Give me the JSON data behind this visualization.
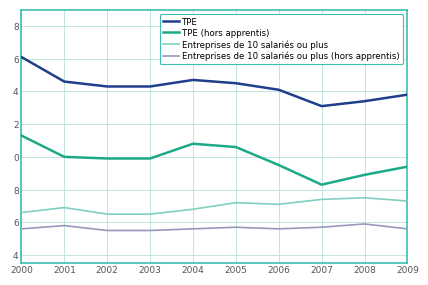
{
  "years": [
    2000,
    2001,
    2002,
    2003,
    2004,
    2005,
    2006,
    2007,
    2008,
    2009
  ],
  "tpe": [
    106.1,
    104.6,
    104.3,
    104.3,
    104.7,
    104.5,
    104.1,
    103.1,
    103.4,
    103.8
  ],
  "tpe_hors": [
    101.3,
    100.0,
    99.9,
    99.9,
    100.8,
    100.6,
    99.5,
    98.3,
    98.9,
    99.4
  ],
  "ent10plus": [
    96.6,
    96.9,
    96.5,
    96.5,
    96.8,
    97.2,
    97.1,
    97.4,
    97.5,
    97.3
  ],
  "ent10plus_hors": [
    95.6,
    95.8,
    95.5,
    95.5,
    95.6,
    95.7,
    95.6,
    95.7,
    95.9,
    95.6
  ],
  "color_tpe": "#1f3f8c",
  "color_tpe_hors": "#1aaa88",
  "color_ent10plus": "#80cfc0",
  "color_ent10plus_hors": "#9999bb",
  "label_tpe": "TPE",
  "label_tpe_hors": "TPE (hors apprentis)",
  "label_ent10plus": "Entreprises de 10 salariés ou plus",
  "label_ent10plus_hors": "Entreprises de 10 salariés ou plus (hors apprentis)",
  "ylim": [
    93.5,
    109.0
  ],
  "yticks": [
    94,
    96,
    98,
    100,
    102,
    104,
    106,
    108
  ],
  "ytick_labels": [
    "4",
    "6",
    "8",
    "0",
    "2",
    "4",
    "6",
    "8"
  ],
  "bg_color": "#ffffff",
  "grid_color": "#b8e0da",
  "border_color": "#3dbdb0",
  "lw_thick": 1.8,
  "lw_thin": 1.2,
  "tick_fontsize": 6.5,
  "legend_fontsize": 6.2
}
